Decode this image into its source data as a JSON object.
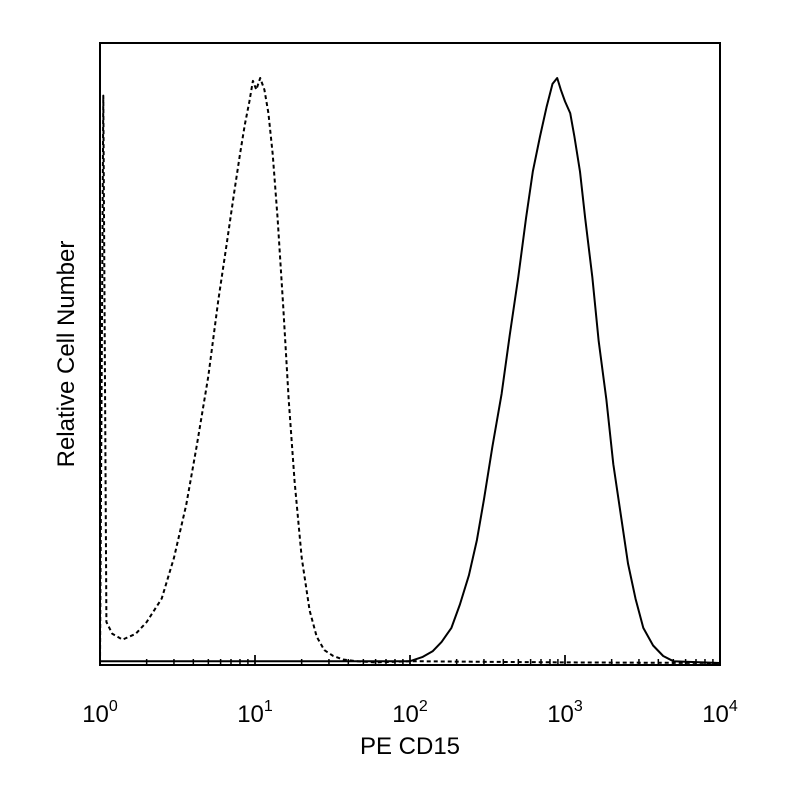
{
  "chart_data": {
    "type": "line",
    "title": "",
    "xlabel": "PE CD15",
    "ylabel": "Relative Cell Number",
    "x_scale": "log",
    "xlim": [
      1,
      10000
    ],
    "ylim": [
      0,
      100
    ],
    "grid": false,
    "legend": "none",
    "x_ticks": [
      {
        "base": "10",
        "exp": "0",
        "value": 1
      },
      {
        "base": "10",
        "exp": "1",
        "value": 10
      },
      {
        "base": "10",
        "exp": "2",
        "value": 100
      },
      {
        "base": "10",
        "exp": "3",
        "value": 1000
      },
      {
        "base": "10",
        "exp": "4",
        "value": 10000
      }
    ],
    "series": [
      {
        "style": "dashed",
        "color": "#000000",
        "x": [
          1.0,
          1.05,
          1.1,
          1.2,
          1.4,
          1.7,
          2.0,
          2.5,
          3.0,
          3.6,
          4.2,
          5.0,
          5.8,
          6.6,
          7.3,
          8.0,
          8.6,
          9.2,
          9.7,
          10.2,
          10.8,
          11.5,
          12.2,
          13.0,
          14.0,
          15.2,
          16.5,
          18.0,
          20.0,
          22.5,
          25.0,
          28.0,
          32.0,
          37.0,
          45.0,
          60.0,
          100.0,
          300.0,
          1000.0,
          10000.0
        ],
        "y": [
          0,
          97,
          7,
          5,
          4,
          5,
          7,
          11,
          18,
          27,
          37,
          49,
          62,
          72,
          80,
          87,
          92,
          96,
          99.5,
          98,
          100,
          98,
          94,
          87,
          76,
          61,
          45,
          31,
          18,
          9,
          4.5,
          2.2,
          1.2,
          0.6,
          0.3,
          0.1,
          0.3,
          0.2,
          0.1,
          0
        ]
      },
      {
        "style": "solid",
        "color": "#000000",
        "x": [
          1.0,
          100.0,
          120.0,
          140.0,
          160.0,
          185.0,
          210.0,
          240.0,
          270.0,
          300.0,
          340.0,
          390.0,
          440.0,
          500.0,
          560.0,
          620.0,
          690.0,
          760.0,
          830.0,
          890.0,
          940.0,
          1000.0,
          1080.0,
          1150.0,
          1250.0,
          1350.0,
          1500.0,
          1650.0,
          1850.0,
          2050.0,
          2300.0,
          2550.0,
          2850.0,
          3200.0,
          3700.0,
          4300.0,
          5000.0,
          6000.0,
          10000.0
        ],
        "y": [
          0.3,
          0.3,
          1.0,
          2.0,
          3.6,
          6.0,
          10,
          15,
          21,
          28,
          37,
          46,
          56,
          66,
          76,
          84,
          90,
          95,
          99,
          100,
          98,
          96,
          94,
          90,
          84,
          76,
          66,
          55,
          45,
          34,
          25,
          17,
          11,
          6,
          3,
          1.2,
          0.3,
          0.2,
          0
        ]
      }
    ]
  }
}
